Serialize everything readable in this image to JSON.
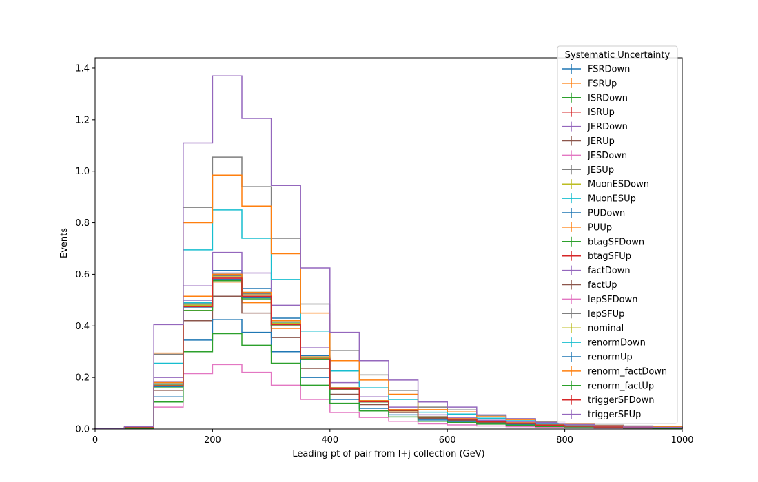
{
  "chart_data": {
    "type": "line",
    "step": true,
    "xlabel": "Leading pt of pair from l+j collection (GeV)",
    "ylabel": "Events",
    "xlim": [
      0,
      1000
    ],
    "ylim": [
      0,
      1.44
    ],
    "xticks": [
      "0",
      "200",
      "400",
      "600",
      "800",
      "1000"
    ],
    "yticks": [
      "0.0",
      "0.2",
      "0.4",
      "0.6",
      "0.8",
      "1.0",
      "1.2",
      "1.4"
    ],
    "grid": false,
    "legend": {
      "title": "Systematic Uncertainty",
      "position": "top-right"
    },
    "bin_edges": [
      0,
      50,
      100,
      150,
      200,
      250,
      300,
      350,
      400,
      450,
      500,
      550,
      600,
      650,
      700,
      750,
      800,
      850,
      900,
      950,
      1000
    ],
    "series": [
      {
        "name": "FSRDown",
        "color": "#1f77b4",
        "values": [
          0.001,
          0.005,
          0.17,
          0.5,
          0.615,
          0.545,
          0.43,
          0.285,
          0.16,
          0.11,
          0.075,
          0.048,
          0.04,
          0.03,
          0.024,
          0.016,
          0.012,
          0.009,
          0.007,
          0.006
        ]
      },
      {
        "name": "FSRUp",
        "color": "#ff7f0e",
        "values": [
          0.001,
          0.005,
          0.165,
          0.46,
          0.57,
          0.49,
          0.39,
          0.27,
          0.155,
          0.105,
          0.07,
          0.045,
          0.038,
          0.028,
          0.022,
          0.015,
          0.011,
          0.008,
          0.006,
          0.005
        ]
      },
      {
        "name": "ISRDown",
        "color": "#2ca02c",
        "values": [
          0.001,
          0.005,
          0.17,
          0.49,
          0.6,
          0.53,
          0.42,
          0.28,
          0.16,
          0.11,
          0.074,
          0.047,
          0.039,
          0.029,
          0.023,
          0.016,
          0.012,
          0.008,
          0.007,
          0.005
        ]
      },
      {
        "name": "ISRUp",
        "color": "#d62728",
        "values": [
          0.001,
          0.005,
          0.165,
          0.47,
          0.58,
          0.51,
          0.4,
          0.275,
          0.157,
          0.107,
          0.072,
          0.046,
          0.038,
          0.028,
          0.022,
          0.015,
          0.011,
          0.008,
          0.006,
          0.005
        ]
      },
      {
        "name": "JERDown",
        "color": "#9467bd",
        "values": [
          0.001,
          0.005,
          0.2,
          0.555,
          0.685,
          0.605,
          0.48,
          0.315,
          0.18,
          0.125,
          0.085,
          0.055,
          0.045,
          0.034,
          0.027,
          0.018,
          0.013,
          0.01,
          0.008,
          0.006
        ]
      },
      {
        "name": "JERUp",
        "color": "#8c564b",
        "values": [
          0.001,
          0.004,
          0.15,
          0.42,
          0.515,
          0.45,
          0.355,
          0.235,
          0.135,
          0.095,
          0.064,
          0.041,
          0.034,
          0.025,
          0.02,
          0.014,
          0.01,
          0.007,
          0.006,
          0.005
        ]
      },
      {
        "name": "JESDown",
        "color": "#e377c2",
        "values": [
          0.001,
          0.002,
          0.085,
          0.215,
          0.25,
          0.22,
          0.17,
          0.115,
          0.064,
          0.045,
          0.03,
          0.02,
          0.016,
          0.012,
          0.009,
          0.006,
          0.005,
          0.004,
          0.003,
          0.002
        ]
      },
      {
        "name": "JESUp",
        "color": "#7f7f7f",
        "values": [
          0.002,
          0.008,
          0.29,
          0.86,
          1.055,
          0.94,
          0.74,
          0.485,
          0.305,
          0.21,
          0.15,
          0.085,
          0.074,
          0.053,
          0.04,
          0.027,
          0.02,
          0.015,
          0.012,
          0.009
        ]
      },
      {
        "name": "MuonESDown",
        "color": "#bcbd22",
        "values": [
          0.001,
          0.005,
          0.17,
          0.48,
          0.59,
          0.52,
          0.41,
          0.28,
          0.16,
          0.108,
          0.073,
          0.046,
          0.039,
          0.029,
          0.023,
          0.016,
          0.011,
          0.008,
          0.007,
          0.005
        ]
      },
      {
        "name": "MuonESUp",
        "color": "#17becf",
        "values": [
          0.001,
          0.006,
          0.255,
          0.695,
          0.85,
          0.74,
          0.58,
          0.38,
          0.225,
          0.16,
          0.115,
          0.065,
          0.058,
          0.042,
          0.032,
          0.022,
          0.016,
          0.012,
          0.009,
          0.007
        ]
      },
      {
        "name": "PUDown",
        "color": "#1f77b4",
        "values": [
          0.001,
          0.003,
          0.125,
          0.345,
          0.425,
          0.375,
          0.3,
          0.2,
          0.115,
          0.08,
          0.055,
          0.035,
          0.029,
          0.022,
          0.017,
          0.012,
          0.009,
          0.006,
          0.005,
          0.004
        ]
      },
      {
        "name": "PUUp",
        "color": "#ff7f0e",
        "values": [
          0.002,
          0.009,
          0.295,
          0.8,
          0.985,
          0.865,
          0.68,
          0.45,
          0.265,
          0.19,
          0.135,
          0.075,
          0.066,
          0.048,
          0.037,
          0.025,
          0.018,
          0.013,
          0.01,
          0.008
        ]
      },
      {
        "name": "btagSFDown",
        "color": "#2ca02c",
        "values": [
          0.001,
          0.003,
          0.105,
          0.3,
          0.37,
          0.325,
          0.255,
          0.17,
          0.1,
          0.07,
          0.047,
          0.03,
          0.025,
          0.019,
          0.015,
          0.01,
          0.008,
          0.006,
          0.004,
          0.003
        ]
      },
      {
        "name": "btagSFUp",
        "color": "#d62728",
        "values": [
          0.001,
          0.005,
          0.165,
          0.475,
          0.585,
          0.515,
          0.405,
          0.272,
          0.155,
          0.106,
          0.071,
          0.046,
          0.038,
          0.028,
          0.022,
          0.015,
          0.011,
          0.008,
          0.006,
          0.005
        ]
      },
      {
        "name": "factDown",
        "color": "#9467bd",
        "values": [
          0.001,
          0.005,
          0.185,
          0.5,
          0.605,
          0.525,
          0.41,
          0.275,
          0.16,
          0.11,
          0.075,
          0.047,
          0.04,
          0.03,
          0.024,
          0.016,
          0.012,
          0.009,
          0.007,
          0.005
        ]
      },
      {
        "name": "factUp",
        "color": "#8c564b",
        "values": [
          0.001,
          0.005,
          0.175,
          0.485,
          0.59,
          0.51,
          0.4,
          0.27,
          0.157,
          0.108,
          0.073,
          0.046,
          0.039,
          0.029,
          0.023,
          0.016,
          0.011,
          0.008,
          0.006,
          0.005
        ]
      },
      {
        "name": "lepSFDown",
        "color": "#e377c2",
        "values": [
          0.001,
          0.005,
          0.168,
          0.475,
          0.585,
          0.515,
          0.405,
          0.272,
          0.156,
          0.106,
          0.072,
          0.046,
          0.038,
          0.028,
          0.022,
          0.015,
          0.011,
          0.008,
          0.006,
          0.005
        ]
      },
      {
        "name": "lepSFUp",
        "color": "#7f7f7f",
        "values": [
          0.001,
          0.005,
          0.172,
          0.485,
          0.595,
          0.525,
          0.415,
          0.278,
          0.16,
          0.109,
          0.074,
          0.047,
          0.039,
          0.029,
          0.023,
          0.016,
          0.012,
          0.008,
          0.007,
          0.005
        ]
      },
      {
        "name": "nominal",
        "color": "#bcbd22",
        "values": [
          0.001,
          0.005,
          0.17,
          0.48,
          0.59,
          0.52,
          0.41,
          0.275,
          0.158,
          0.107,
          0.073,
          0.046,
          0.038,
          0.028,
          0.022,
          0.015,
          0.011,
          0.008,
          0.006,
          0.005
        ]
      },
      {
        "name": "renormDown",
        "color": "#17becf",
        "values": [
          0.001,
          0.005,
          0.175,
          0.49,
          0.6,
          0.53,
          0.415,
          0.28,
          0.16,
          0.11,
          0.074,
          0.047,
          0.039,
          0.029,
          0.023,
          0.016,
          0.012,
          0.008,
          0.007,
          0.005
        ]
      },
      {
        "name": "renormUp",
        "color": "#1f77b4",
        "values": [
          0.001,
          0.005,
          0.165,
          0.47,
          0.58,
          0.51,
          0.4,
          0.27,
          0.155,
          0.105,
          0.072,
          0.045,
          0.038,
          0.028,
          0.022,
          0.015,
          0.011,
          0.008,
          0.006,
          0.005
        ]
      },
      {
        "name": "renorm_factDown",
        "color": "#ff7f0e",
        "values": [
          0.001,
          0.005,
          0.18,
          0.515,
          0.6,
          0.53,
          0.42,
          0.28,
          0.16,
          0.11,
          0.075,
          0.047,
          0.04,
          0.03,
          0.024,
          0.016,
          0.012,
          0.009,
          0.007,
          0.005
        ]
      },
      {
        "name": "renorm_factUp",
        "color": "#2ca02c",
        "values": [
          0.001,
          0.005,
          0.16,
          0.46,
          0.575,
          0.505,
          0.4,
          0.27,
          0.155,
          0.105,
          0.071,
          0.045,
          0.038,
          0.028,
          0.022,
          0.015,
          0.011,
          0.008,
          0.006,
          0.005
        ]
      },
      {
        "name": "triggerSFDown",
        "color": "#d62728",
        "values": [
          0.001,
          0.005,
          0.168,
          0.475,
          0.585,
          0.515,
          0.405,
          0.272,
          0.156,
          0.106,
          0.072,
          0.046,
          0.038,
          0.028,
          0.022,
          0.015,
          0.011,
          0.008,
          0.006,
          0.005
        ]
      },
      {
        "name": "triggerSFUp",
        "color": "#9467bd",
        "values": [
          0.002,
          0.01,
          0.405,
          1.11,
          1.37,
          1.205,
          0.945,
          0.625,
          0.375,
          0.265,
          0.19,
          0.105,
          0.085,
          0.055,
          0.04,
          0.025,
          0.017,
          0.012,
          0.008,
          0.006
        ]
      }
    ]
  }
}
